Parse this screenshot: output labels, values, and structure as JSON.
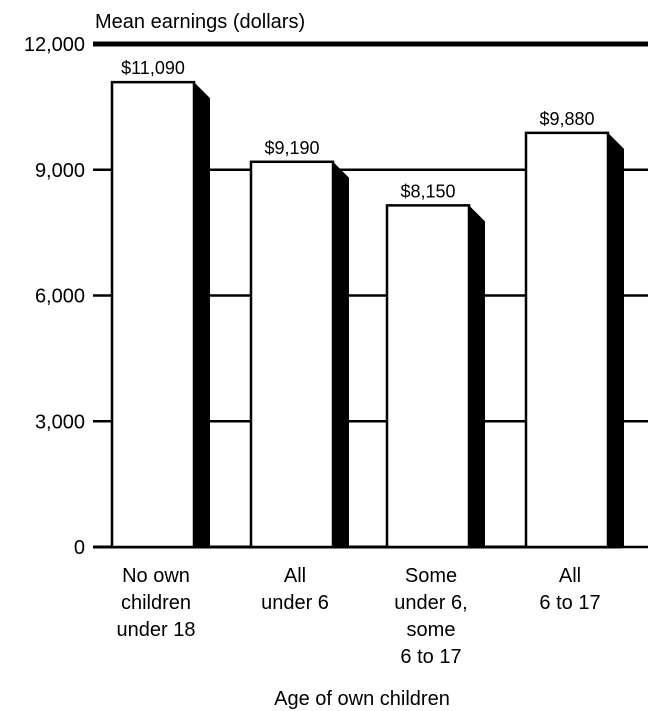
{
  "chart_data": {
    "type": "bar",
    "ylabel": "Mean earnings (dollars)",
    "xlabel": "Age of own children",
    "ylim": [
      0,
      12000
    ],
    "yticks": [
      {
        "value": 0,
        "label": "0"
      },
      {
        "value": 3000,
        "label": "3,000"
      },
      {
        "value": 6000,
        "label": "6,000"
      },
      {
        "value": 9000,
        "label": "9,000"
      },
      {
        "value": 12000,
        "label": "12,000"
      }
    ],
    "categories": [
      {
        "lines": [
          "No own",
          "children",
          "under 18"
        ]
      },
      {
        "lines": [
          "All",
          "under 6"
        ]
      },
      {
        "lines": [
          "Some",
          "under 6,",
          "some",
          "6 to 17"
        ]
      },
      {
        "lines": [
          "All",
          "6 to 17"
        ]
      }
    ],
    "values": [
      11090,
      9190,
      8150,
      9880
    ],
    "value_labels": [
      "$11,090",
      "$9,190",
      "$8,150",
      "$9,880"
    ],
    "grid": true,
    "colors": {
      "bar_face": "#ffffff",
      "bar_shadow": "#000000",
      "grid": "#000000"
    }
  }
}
